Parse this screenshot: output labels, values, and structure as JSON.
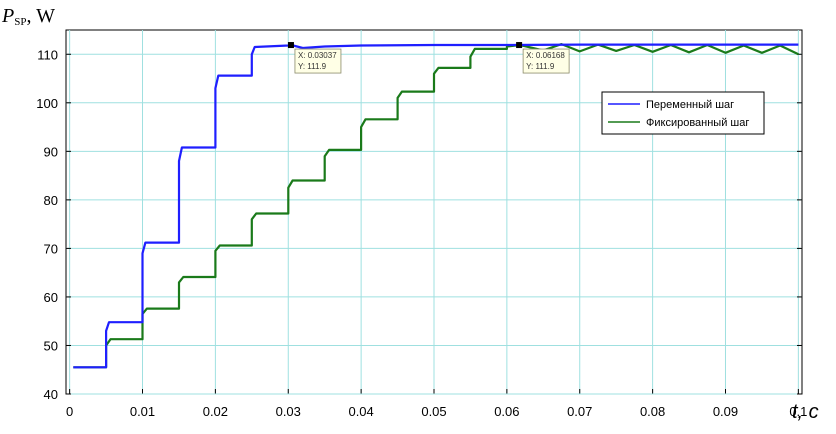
{
  "chart_data": {
    "type": "line",
    "ylabel_main": "P",
    "ylabel_sub": "SP",
    "ylabel_unit": ", W",
    "xlabel": "t, c",
    "xlim": [
      -0.0005,
      0.1005
    ],
    "ylim": [
      40,
      115
    ],
    "xticks": [
      0,
      0.01,
      0.02,
      0.03,
      0.04,
      0.05,
      0.06,
      0.07,
      0.08,
      0.09,
      0.1
    ],
    "xtick_labels": [
      "0",
      "0.01",
      "0.02",
      "0.03",
      "0.04",
      "0.05",
      "0.06",
      "0.07",
      "0.08",
      "0.09",
      "0.1"
    ],
    "yticks": [
      40,
      50,
      60,
      70,
      80,
      90,
      100,
      110
    ],
    "ytick_labels": [
      "40",
      "50",
      "60",
      "70",
      "80",
      "90",
      "100",
      "110"
    ],
    "grid": true,
    "legend_position": "right",
    "series": [
      {
        "name": "Переменный шаг",
        "color": "#1f1fff",
        "x": [
          0.0005,
          0.005,
          0.005,
          0.0054,
          0.01,
          0.01,
          0.0104,
          0.015,
          0.015,
          0.0154,
          0.02,
          0.02,
          0.0204,
          0.025,
          0.025,
          0.0254,
          0.03,
          0.0304,
          0.032,
          0.035,
          0.04,
          0.05,
          0.06,
          0.07,
          0.08,
          0.09,
          0.1
        ],
        "y": [
          45.5,
          45.5,
          53,
          54.8,
          54.8,
          69,
          71.2,
          71.2,
          88,
          90.8,
          90.8,
          103,
          105.6,
          105.6,
          110,
          111.5,
          111.8,
          111.9,
          111.3,
          111.6,
          111.8,
          111.9,
          111.9,
          112.0,
          112.0,
          112.0,
          112.0
        ]
      },
      {
        "name": "Фиксированный шаг",
        "color": "#1a7a1a",
        "x": [
          0.0005,
          0.005,
          0.005,
          0.0056,
          0.01,
          0.01,
          0.0106,
          0.015,
          0.015,
          0.0156,
          0.02,
          0.02,
          0.0206,
          0.025,
          0.025,
          0.0256,
          0.03,
          0.03,
          0.0306,
          0.035,
          0.035,
          0.0356,
          0.04,
          0.04,
          0.0406,
          0.045,
          0.045,
          0.0456,
          0.05,
          0.05,
          0.0506,
          0.055,
          0.055,
          0.0556,
          0.06,
          0.06,
          0.0618,
          0.065,
          0.0675,
          0.07,
          0.0725,
          0.075,
          0.0775,
          0.08,
          0.0825,
          0.085,
          0.0875,
          0.09,
          0.0925,
          0.095,
          0.0975,
          0.1
        ],
        "y": [
          45.5,
          45.5,
          50,
          51.3,
          51.3,
          56.5,
          57.6,
          57.6,
          63,
          64.1,
          64.1,
          69.5,
          70.6,
          70.6,
          76,
          77.2,
          77.2,
          82.5,
          84.0,
          84.0,
          89,
          90.3,
          90.3,
          95,
          96.6,
          96.6,
          101,
          102.3,
          102.3,
          106,
          107.2,
          107.2,
          109.5,
          111.1,
          111.1,
          111.6,
          111.9,
          110.8,
          112.1,
          110.6,
          112.0,
          110.7,
          111.9,
          110.5,
          111.9,
          110.4,
          111.9,
          110.3,
          111.8,
          110.3,
          111.8,
          110.0
        ]
      }
    ],
    "annotations": [
      {
        "x": 0.03037,
        "y": 111.9,
        "line1": "X: 0.03037",
        "line2": "Y: 111.9"
      },
      {
        "x": 0.06168,
        "y": 111.9,
        "line1": "X: 0.06168",
        "line2": "Y: 111.9"
      }
    ]
  }
}
